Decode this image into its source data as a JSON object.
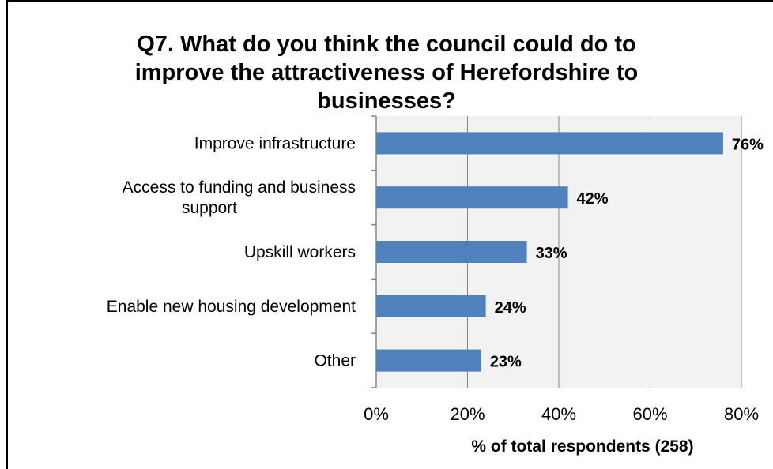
{
  "chart_data": {
    "type": "bar",
    "orientation": "horizontal",
    "title": "Q7. What do you think the council could do to improve the attractiveness of Herefordshire to businesses?",
    "title_lines": [
      "Q7. What do you think the council could do to",
      "improve the attractiveness of Herefordshire to",
      "businesses?"
    ],
    "categories": [
      "Improve infrastructure",
      "Access to funding and business support",
      "Upskill workers",
      "Enable new housing development",
      "Other"
    ],
    "category_lines": [
      [
        "Improve infrastructure"
      ],
      [
        "Access to funding and business",
        "support"
      ],
      [
        "Upskill workers"
      ],
      [
        "Enable new housing development"
      ],
      [
        "Other"
      ]
    ],
    "values": [
      76,
      42,
      33,
      24,
      23
    ],
    "data_labels": [
      "76%",
      "42%",
      "33%",
      "24%",
      "23%"
    ],
    "xlabel": "% of total respondents (258)",
    "ylabel": "",
    "xlim": [
      0,
      80
    ],
    "x_ticks": [
      0,
      20,
      40,
      60,
      80
    ],
    "x_tick_labels": [
      "0%",
      "20%",
      "40%",
      "60%",
      "80%"
    ],
    "bar_color": "#4f81bd",
    "plot_background": "#f2f2f2",
    "gridline_color": "#868686",
    "grid": true,
    "legend": "none"
  }
}
